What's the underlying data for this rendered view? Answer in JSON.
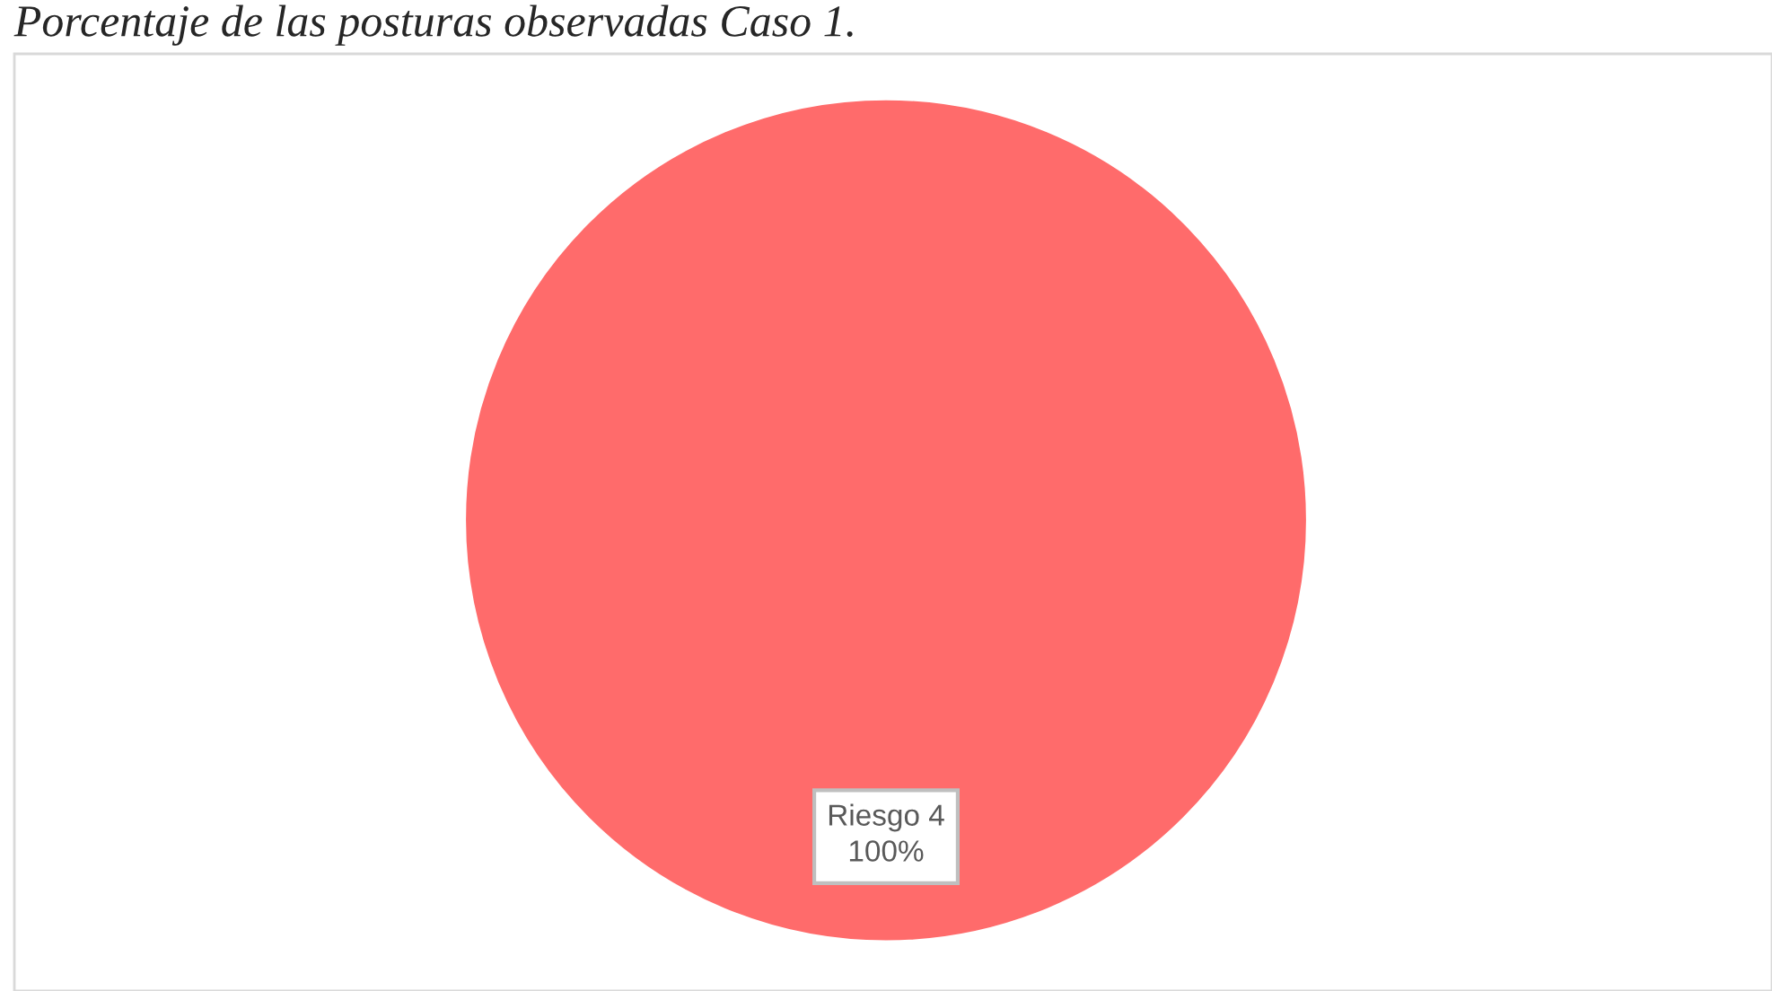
{
  "chart_data": {
    "type": "pie",
    "title": "Porcentaje de las posturas observadas Caso 1.",
    "categories": [
      "Riesgo 4"
    ],
    "values": [
      100
    ],
    "colors": [
      "#ff6b6b"
    ],
    "value_labels": [
      "100%"
    ]
  }
}
